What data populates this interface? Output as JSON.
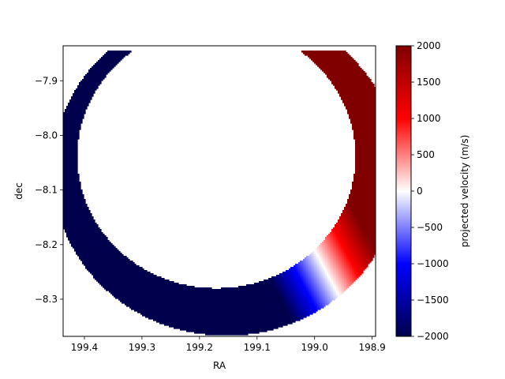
{
  "chart_data": {
    "type": "scatter",
    "title": "",
    "xlabel": "RA",
    "ylabel": "dec",
    "xlim": [
      199.437,
      198.894
    ],
    "ylim": [
      -8.368,
      -7.836
    ],
    "x_inverted": true,
    "grid": false,
    "xticks": [
      {
        "value": 199.4,
        "label": "199.4"
      },
      {
        "value": 199.3,
        "label": "199.3"
      },
      {
        "value": 199.2,
        "label": "199.2"
      },
      {
        "value": 199.1,
        "label": "199.1"
      },
      {
        "value": 199.0,
        "label": "199.0"
      },
      {
        "value": 198.9,
        "label": "198.9"
      }
    ],
    "yticks": [
      {
        "value": -7.9,
        "label": "−7.9"
      },
      {
        "value": -8.0,
        "label": "−8.0"
      },
      {
        "value": -8.1,
        "label": "−8.1"
      },
      {
        "value": -8.2,
        "label": "−8.2"
      },
      {
        "value": -8.3,
        "label": "−8.3"
      }
    ],
    "crescent": {
      "outer_circle": {
        "center_ra": 199.154,
        "center_dec": -8.065,
        "radius_deg": 0.301
      },
      "inner_circle": {
        "center_ra": 199.171,
        "center_dec": -8.038,
        "radius_deg": 0.242
      },
      "dec_max": -7.846
    },
    "velocity_field": {
      "zero_axis_direction_deg": 27,
      "zero_offset_ra": 199.074,
      "gradient_ms_per_deg": 21500
    },
    "colorbar": {
      "label": "projected velocity (m/s)",
      "vmin": -2000,
      "vmax": 2000,
      "colormap": "seismic",
      "colormap_stops": [
        "#00004c",
        "#0000ff",
        "#ffffff",
        "#ff0000",
        "#800000"
      ],
      "ticks": [
        {
          "value": 2000,
          "label": "2000"
        },
        {
          "value": 1500,
          "label": "1500"
        },
        {
          "value": 1000,
          "label": "1000"
        },
        {
          "value": 500,
          "label": "500"
        },
        {
          "value": 0,
          "label": "0"
        },
        {
          "value": -500,
          "label": "−500"
        },
        {
          "value": -1000,
          "label": "−1000"
        },
        {
          "value": -1500,
          "label": "−1500"
        },
        {
          "value": -2000,
          "label": "−2000"
        }
      ]
    }
  }
}
